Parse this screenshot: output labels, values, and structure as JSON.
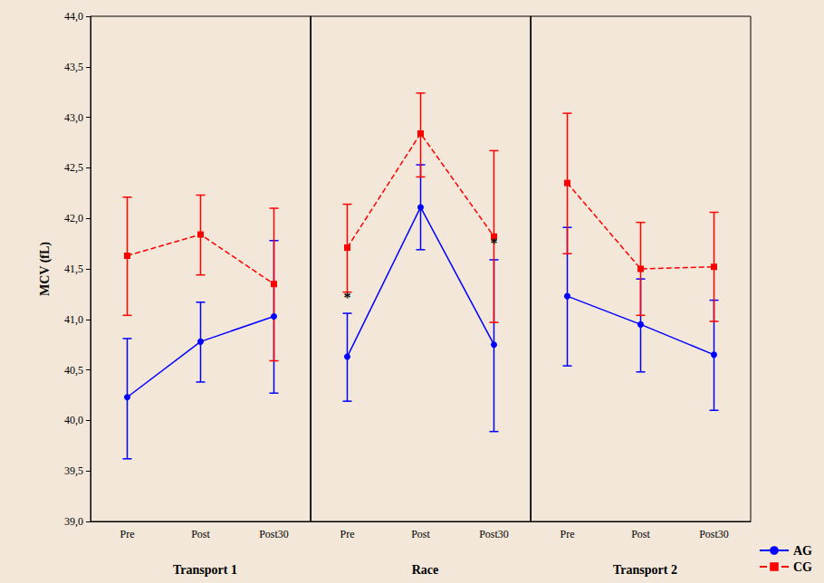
{
  "chart_data": [
    {
      "type": "line",
      "title": "Transport 1",
      "y_label": "MCV (fL)",
      "categories": [
        "Pre",
        "Post",
        "Post30"
      ],
      "series": [
        {
          "name": "AG",
          "color": "#0000ff",
          "marker": "circle",
          "line_style": "solid",
          "values": [
            40.23,
            40.78,
            41.03
          ],
          "error_low": [
            39.62,
            40.38,
            40.27
          ],
          "error_high": [
            40.81,
            41.17,
            41.78
          ]
        },
        {
          "name": "CG",
          "color": "#ff0000",
          "marker": "square",
          "line_style": "dashed",
          "values": [
            41.63,
            41.84,
            41.35
          ],
          "error_low": [
            41.04,
            41.44,
            40.59
          ],
          "error_high": [
            42.21,
            42.23,
            42.1
          ]
        }
      ],
      "ylim": [
        39,
        44
      ],
      "yticks": [
        {
          "value": 39,
          "label": "39,0"
        },
        {
          "value": 39.5,
          "label": "39,5"
        },
        {
          "value": 40,
          "label": "40,0"
        },
        {
          "value": 40.5,
          "label": "40,5"
        },
        {
          "value": 41,
          "label": "41,0"
        },
        {
          "value": 41.5,
          "label": "41,5"
        },
        {
          "value": 42,
          "label": "42,0"
        },
        {
          "value": 42.5,
          "label": "42,5"
        },
        {
          "value": 43,
          "label": "43,0"
        },
        {
          "value": 43.5,
          "label": "43,5"
        },
        {
          "value": 44,
          "label": "44,0"
        }
      ],
      "grid": false
    },
    {
      "type": "line",
      "title": "Race",
      "categories": [
        "Pre",
        "Post",
        "Post30"
      ],
      "series": [
        {
          "name": "AG",
          "color": "#0000ff",
          "marker": "circle",
          "line_style": "solid",
          "values": [
            40.63,
            42.11,
            40.75
          ],
          "error_low": [
            40.19,
            41.69,
            39.89
          ],
          "error_high": [
            41.06,
            42.53,
            41.59
          ]
        },
        {
          "name": "CG",
          "color": "#ff0000",
          "marker": "square",
          "line_style": "dashed",
          "values": [
            41.71,
            42.84,
            41.82
          ],
          "error_low": [
            41.27,
            42.41,
            40.97
          ],
          "error_high": [
            42.14,
            43.24,
            42.67
          ]
        }
      ],
      "annotations": [
        {
          "text": "*",
          "series": "AG",
          "category": "Pre"
        },
        {
          "text": "*",
          "series": "AG",
          "category": "Post30"
        }
      ],
      "ylim": [
        39,
        44
      ],
      "tick_labels": "x",
      "grid": false
    },
    {
      "type": "line",
      "title": "Transport 2",
      "categories": [
        "Pre",
        "Post",
        "Post30"
      ],
      "series": [
        {
          "name": "AG",
          "color": "#0000ff",
          "marker": "circle",
          "line_style": "solid",
          "values": [
            41.23,
            40.95,
            40.65
          ],
          "error_low": [
            40.54,
            40.48,
            40.1
          ],
          "error_high": [
            41.91,
            41.4,
            41.19
          ]
        },
        {
          "name": "CG",
          "color": "#ff0000",
          "marker": "square",
          "line_style": "dashed",
          "values": [
            42.35,
            41.5,
            41.52
          ],
          "error_low": [
            41.65,
            41.04,
            40.98
          ],
          "error_high": [
            43.04,
            41.96,
            42.06
          ]
        }
      ],
      "ylim": [
        39,
        44
      ],
      "tick_labels": "x",
      "grid": false,
      "legend": "lower right"
    }
  ]
}
